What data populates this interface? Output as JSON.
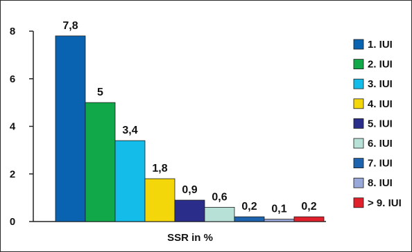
{
  "chart_data": {
    "type": "bar",
    "title": "",
    "xlabel": "SSR in %",
    "ylabel": "",
    "ylim": [
      0,
      8
    ],
    "yticks": [
      0,
      2,
      4,
      6,
      8
    ],
    "grid": false,
    "legend_position": "right",
    "categories": [
      "1. IUI",
      "2. IUI",
      "3. IUI",
      "4. IUI",
      "5. IUI",
      "6. IUI",
      "7. IUI",
      "8. IUI",
      "> 9. IUI"
    ],
    "values": [
      7.8,
      5,
      3.4,
      1.8,
      0.9,
      0.6,
      0.2,
      0.1,
      0.2
    ],
    "value_labels": [
      "7,8",
      "5",
      "3,4",
      "1,8",
      "0,9",
      "0,6",
      "0,2",
      "0,1",
      "0,2"
    ],
    "colors": [
      "#0a63b0",
      "#11a84a",
      "#14bde9",
      "#f3d70b",
      "#2a2e8a",
      "#b7e1d6",
      "#1e63ad",
      "#98a8d8",
      "#e0202a"
    ],
    "legend": [
      "1. IUI",
      "2. IUI",
      "3. IUI",
      "4. IUI",
      "5. IUI",
      "6. IUI",
      "7. IUI",
      "8. IUI",
      "> 9. IUI"
    ]
  }
}
